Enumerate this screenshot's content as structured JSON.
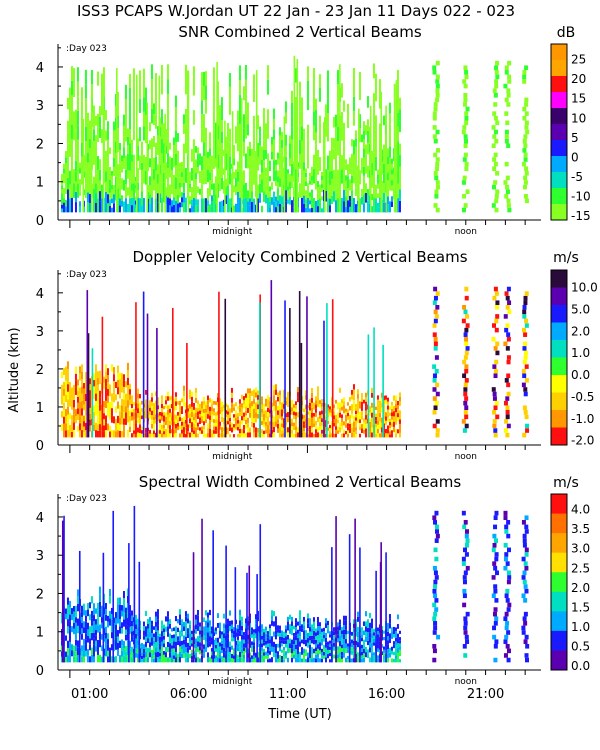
{
  "header": {
    "title": "ISS3 PCAPS W.Jordan UT  22 Jan - 23 Jan 11 Days 022 - 023",
    "ylabel": "Altitude (km)",
    "xlabel": "Time (UT)"
  },
  "chart_data": [
    {
      "type": "heatmap",
      "title": "SNR Combined 2 Vertical Beams",
      "unit": "dB",
      "day_label": ":Day 023",
      "midnight_label": "midnight",
      "noon_label": "noon",
      "ylim": [
        0,
        4.6
      ],
      "y_ticks": [
        "0",
        "1",
        "2",
        "3",
        "4"
      ],
      "x_range_hours": [
        -0.6,
        23.8
      ],
      "colorbar": {
        "labels": [
          "25",
          "20",
          "15",
          "10",
          "5",
          "0",
          "-5",
          "-10",
          "-15"
        ],
        "colors": [
          "#ff9800",
          "#ffa500",
          "#ff1010",
          "#ff00ff",
          "#3a006b",
          "#5a00b0",
          "#1a1aff",
          "#00aaff",
          "#00e0c0",
          "#2eff2e",
          "#88ff22"
        ]
      }
    },
    {
      "type": "heatmap",
      "title": "Doppler Velocity Combined 2 Vertical Beams",
      "unit": "m/s",
      "day_label": ":Day 023",
      "midnight_label": "midnight",
      "noon_label": "noon",
      "ylim": [
        0,
        4.6
      ],
      "y_ticks": [
        "0",
        "1",
        "2",
        "3",
        "4"
      ],
      "x_range_hours": [
        -0.6,
        23.8
      ],
      "colorbar": {
        "labels": [
          "10.0",
          "5.0",
          "2.0",
          "1.0",
          "0.0",
          "-0.5",
          "-1.0",
          "-2.0"
        ],
        "colors": [
          "#2a0a3a",
          "#5a00b0",
          "#1a1aff",
          "#00aaff",
          "#00e0c0",
          "#2eff2e",
          "#ffff00",
          "#ffd000",
          "#ff9800",
          "#ff1010"
        ]
      }
    },
    {
      "type": "heatmap",
      "title": "Spectral Width Combined 2 Vertical Beams",
      "unit": "m/s",
      "day_label": ":Day 023",
      "midnight_label": "midnight",
      "noon_label": "noon",
      "ylim": [
        0,
        4.6
      ],
      "y_ticks": [
        "0",
        "1",
        "2",
        "3",
        "4"
      ],
      "x_range_hours": [
        -0.6,
        23.8
      ],
      "x_tick_labels": [
        "01:00",
        "06:00",
        "11:00",
        "16:00",
        "21:00"
      ],
      "x_tick_hours": [
        1,
        6,
        11,
        16,
        21
      ],
      "colorbar": {
        "labels": [
          "4.0",
          "3.5",
          "3.0",
          "2.5",
          "2.0",
          "1.5",
          "1.0",
          "0.5",
          "0.0"
        ],
        "colors": [
          "#ff1010",
          "#ff7000",
          "#ffa500",
          "#ffe000",
          "#2eff2e",
          "#00e0c0",
          "#00aaff",
          "#1a1aff",
          "#5a00b0"
        ]
      }
    }
  ]
}
